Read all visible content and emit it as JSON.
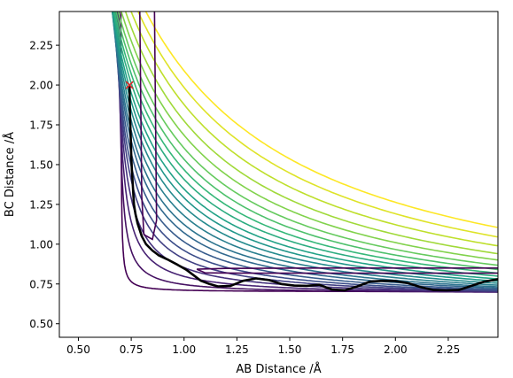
{
  "chart_data": {
    "type": "line",
    "title": "",
    "xlabel": "AB Distance /Å",
    "ylabel": "BC Distance /Å",
    "xlim": [
      0.41,
      2.485
    ],
    "ylim": [
      0.415,
      2.462
    ],
    "x_ticks": [
      0.5,
      0.75,
      1.0,
      1.25,
      1.5,
      1.75,
      2.0,
      2.25
    ],
    "x_tick_labels": [
      "0.50",
      "0.75",
      "1.00",
      "1.25",
      "1.50",
      "1.75",
      "2.00",
      "2.25"
    ],
    "y_ticks": [
      0.5,
      0.75,
      1.0,
      1.25,
      1.5,
      1.75,
      2.0,
      2.25
    ],
    "y_tick_labels": [
      "0.50",
      "0.75",
      "1.00",
      "1.25",
      "1.50",
      "1.75",
      "2.00",
      "2.25"
    ],
    "grid": false,
    "legend": "none",
    "colormap": "viridis",
    "contour_levels": 24,
    "contours": {
      "min_x": 0.742,
      "min_y": 0.741,
      "barrier": [
        0.93,
        0.93
      ],
      "asymptote_x": [
        0.76,
        0.845,
        0.915,
        0.98,
        1.03,
        1.075,
        1.12,
        1.165,
        1.21,
        1.26,
        1.31,
        1.36,
        1.41,
        1.47,
        1.53,
        1.6,
        1.68,
        1.78,
        1.9,
        2.05,
        2.22,
        2.4
      ],
      "asymptote_y": [
        0.755,
        0.805,
        0.845,
        0.875,
        0.905,
        0.93,
        0.955,
        0.98,
        1.0,
        1.02,
        1.04,
        1.06,
        1.08,
        1.1,
        1.12,
        1.14,
        1.16,
        1.18,
        1.2,
        1.22,
        1.24,
        1.26
      ]
    },
    "trajectory": {
      "color": "#000000",
      "start": [
        0.742,
        2.0
      ],
      "start_marker": "x",
      "start_marker_color": "#d62728",
      "x": [
        0.742,
        0.743,
        0.745,
        0.748,
        0.75,
        0.753,
        0.757,
        0.76,
        0.763,
        0.77,
        0.78,
        0.79,
        0.8,
        0.82,
        0.85,
        0.88,
        0.92,
        0.97,
        1.01,
        1.05,
        1.08,
        1.12,
        1.16,
        1.22,
        1.28,
        1.34,
        1.4,
        1.46,
        1.52,
        1.58,
        1.64,
        1.7,
        1.76,
        1.82,
        1.88,
        1.94,
        2.0,
        2.06,
        2.12,
        2.18,
        2.24,
        2.3,
        2.36,
        2.42,
        2.485
      ],
      "y": [
        2.0,
        1.9,
        1.78,
        1.66,
        1.56,
        1.47,
        1.38,
        1.31,
        1.25,
        1.19,
        1.13,
        1.09,
        1.05,
        1.0,
        0.96,
        0.93,
        0.905,
        0.87,
        0.84,
        0.8,
        0.77,
        0.75,
        0.735,
        0.738,
        0.77,
        0.785,
        0.775,
        0.75,
        0.74,
        0.738,
        0.745,
        0.715,
        0.71,
        0.735,
        0.765,
        0.77,
        0.768,
        0.755,
        0.73,
        0.712,
        0.71,
        0.712,
        0.738,
        0.765,
        0.78
      ]
    }
  }
}
